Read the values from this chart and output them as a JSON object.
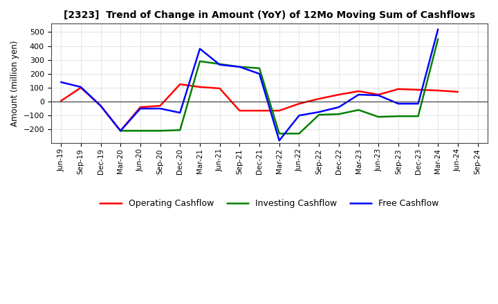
{
  "title": "[2323]  Trend of Change in Amount (YoY) of 12Mo Moving Sum of Cashflows",
  "ylabel": "Amount (million yen)",
  "x_labels": [
    "Jun-19",
    "Sep-19",
    "Dec-19",
    "Mar-20",
    "Jun-20",
    "Sep-20",
    "Dec-20",
    "Mar-21",
    "Jun-21",
    "Sep-21",
    "Dec-21",
    "Mar-22",
    "Jun-22",
    "Sep-22",
    "Dec-22",
    "Mar-23",
    "Jun-23",
    "Sep-23",
    "Dec-23",
    "Mar-24",
    "Jun-24",
    "Sep-24"
  ],
  "operating": [
    5,
    100,
    -30,
    -210,
    -40,
    -30,
    125,
    105,
    95,
    -65,
    -65,
    -65,
    -15,
    20,
    50,
    75,
    50,
    90,
    85,
    80,
    70,
    null
  ],
  "investing": [
    null,
    null,
    null,
    -210,
    -210,
    -210,
    -205,
    290,
    270,
    250,
    240,
    -230,
    -230,
    -95,
    -90,
    -60,
    -110,
    -105,
    -105,
    450,
    null,
    null
  ],
  "free": [
    140,
    105,
    -30,
    -210,
    -50,
    -50,
    -80,
    380,
    265,
    250,
    200,
    -280,
    -100,
    -75,
    -40,
    50,
    45,
    -15,
    -15,
    520,
    null,
    null
  ],
  "operating_color": "#ff0000",
  "investing_color": "#008000",
  "free_color": "#0000ff",
  "ylim_min": -300,
  "ylim_max": 560,
  "yticks": [
    -200,
    -100,
    0,
    100,
    200,
    300,
    400,
    500
  ],
  "background_color": "#ffffff",
  "grid_color": "#888888",
  "linewidth": 1.8
}
